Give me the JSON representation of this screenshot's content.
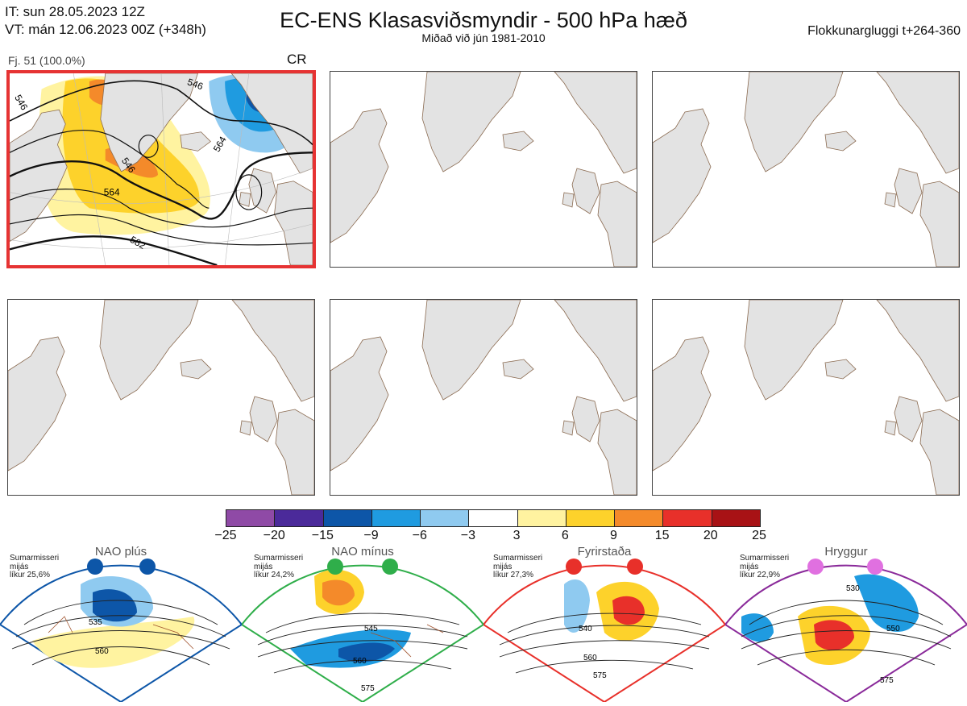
{
  "header": {
    "it_line": "IT: sun 28.05.2023 12Z",
    "vt_line": "VT: mán 12.06.2023 00Z  (+348h)",
    "title": "EC-ENS Klasasviðsmyndir - 500 hPa hæð",
    "subtitle": "Miðað við jún 1981-2010",
    "window": "Flokkunargluggi t+264-360"
  },
  "cluster": {
    "members_label": "Fj. 51 (100.0%)",
    "regime_code": "CR",
    "contour_labels": [
      "546",
      "546",
      "546",
      "564",
      "564",
      "582"
    ]
  },
  "colorbar": {
    "ticks": [
      "−25",
      "−20",
      "−15",
      "−9",
      "−6",
      "−3",
      "3",
      "6",
      "9",
      "15",
      "20",
      "25"
    ],
    "colors": [
      "#8f4aa6",
      "#4b2a9a",
      "#0d56a8",
      "#1f9be0",
      "#8fcaf0",
      "#ffffff",
      "#fff3a0",
      "#fdd22b",
      "#f48a2a",
      "#e8302a",
      "#a81215"
    ]
  },
  "regimes": [
    {
      "name": "NAO plús",
      "season": "Sumarmisseri",
      "detrend": "mijás",
      "prob": "líkur 25,6%",
      "dot_color": "#0d56a8",
      "frame_color": "#0d56a8",
      "contours": [
        "535",
        "560"
      ]
    },
    {
      "name": "NAO mínus",
      "season": "Sumarmisseri",
      "detrend": "mijás",
      "prob": "líkur 24,2%",
      "dot_color": "#2fae4a",
      "frame_color": "#2fae4a",
      "contours": [
        "545",
        "560",
        "575"
      ]
    },
    {
      "name": "Fyrirstaða",
      "season": "Sumarmisseri",
      "detrend": "mijás",
      "prob": "líkur 27,3%",
      "dot_color": "#e8302a",
      "frame_color": "#e8302a",
      "contours": [
        "540",
        "560",
        "575"
      ]
    },
    {
      "name": "Hryggur",
      "season": "Sumarmisseri",
      "detrend": "mijás",
      "prob": "líkur 22,9%",
      "dot_color": "#e070e0",
      "frame_color": "#8a2a9a",
      "contours": [
        "530",
        "550",
        "575"
      ]
    }
  ]
}
